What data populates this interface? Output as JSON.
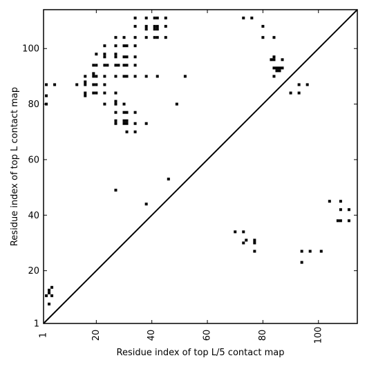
{
  "chart_data": {
    "type": "scatter",
    "title": "",
    "xlabel": "Residue index of top L/5 contact map",
    "ylabel": "Residue index of top L contact map",
    "xlim": [
      1,
      114
    ],
    "ylim": [
      1,
      114
    ],
    "x_ticks": [
      1,
      20,
      40,
      60,
      80,
      100
    ],
    "x_tick_labels": [
      "1",
      "20",
      "40",
      "60",
      "80",
      "100"
    ],
    "y_ticks": [
      1,
      20,
      40,
      60,
      80,
      100
    ],
    "y_tick_labels": [
      "1",
      "20",
      "40",
      "60",
      "80",
      "100"
    ],
    "x_tick_rotation": -90,
    "grid": false,
    "diagonal": true,
    "marker": "square",
    "color": "#000000",
    "series": [
      {
        "values": [
          [
            2,
            87
          ],
          [
            5,
            87
          ],
          [
            2,
            83
          ],
          [
            2,
            80
          ],
          [
            13,
            87
          ],
          [
            16,
            90
          ],
          [
            16,
            88
          ],
          [
            16,
            87
          ],
          [
            16,
            84
          ],
          [
            16,
            83
          ],
          [
            20,
            98
          ],
          [
            19,
            94
          ],
          [
            20,
            94
          ],
          [
            19,
            91
          ],
          [
            19,
            90
          ],
          [
            20,
            90
          ],
          [
            19,
            87
          ],
          [
            20,
            87
          ],
          [
            19,
            84
          ],
          [
            20,
            84
          ],
          [
            23,
            101
          ],
          [
            23,
            98
          ],
          [
            23,
            97
          ],
          [
            23,
            94
          ],
          [
            24,
            94
          ],
          [
            23,
            90
          ],
          [
            23,
            87
          ],
          [
            23,
            84
          ],
          [
            23,
            80
          ],
          [
            27,
            104
          ],
          [
            27,
            101
          ],
          [
            27,
            98
          ],
          [
            27,
            97
          ],
          [
            27,
            94
          ],
          [
            28,
            94
          ],
          [
            27,
            90
          ],
          [
            27,
            84
          ],
          [
            27,
            81
          ],
          [
            27,
            80
          ],
          [
            27,
            77
          ],
          [
            27,
            74
          ],
          [
            27,
            73
          ],
          [
            30,
            104
          ],
          [
            30,
            101
          ],
          [
            31,
            101
          ],
          [
            30,
            97
          ],
          [
            31,
            97
          ],
          [
            30,
            94
          ],
          [
            31,
            94
          ],
          [
            30,
            90
          ],
          [
            31,
            90
          ],
          [
            30,
            80
          ],
          [
            30,
            77
          ],
          [
            31,
            77
          ],
          [
            30,
            74
          ],
          [
            31,
            74
          ],
          [
            30,
            73
          ],
          [
            31,
            73
          ],
          [
            31,
            70
          ],
          [
            34,
            111
          ],
          [
            34,
            108
          ],
          [
            34,
            104
          ],
          [
            34,
            101
          ],
          [
            34,
            97
          ],
          [
            34,
            94
          ],
          [
            34,
            90
          ],
          [
            34,
            77
          ],
          [
            34,
            73
          ],
          [
            34,
            70
          ],
          [
            38,
            111
          ],
          [
            38,
            108
          ],
          [
            38,
            107
          ],
          [
            38,
            104
          ],
          [
            38,
            90
          ],
          [
            38,
            73
          ],
          [
            41,
            111
          ],
          [
            42,
            111
          ],
          [
            41,
            108
          ],
          [
            42,
            108
          ],
          [
            41,
            107
          ],
          [
            42,
            107
          ],
          [
            41,
            104
          ],
          [
            42,
            104
          ],
          [
            42,
            90
          ],
          [
            45,
            111
          ],
          [
            45,
            108
          ],
          [
            45,
            104
          ],
          [
            52,
            90
          ],
          [
            49,
            80
          ],
          [
            27,
            49
          ],
          [
            46,
            53
          ],
          [
            38,
            44
          ],
          [
            2,
            11
          ],
          [
            3,
            12
          ],
          [
            3,
            13
          ],
          [
            4,
            14
          ],
          [
            4,
            11
          ],
          [
            3,
            8
          ],
          [
            73,
            111
          ],
          [
            76,
            111
          ],
          [
            80,
            108
          ],
          [
            80,
            104
          ],
          [
            84,
            104
          ],
          [
            83,
            96
          ],
          [
            84,
            96
          ],
          [
            84,
            97
          ],
          [
            87,
            96
          ],
          [
            84,
            93
          ],
          [
            85,
            93
          ],
          [
            86,
            93
          ],
          [
            87,
            93
          ],
          [
            85,
            92
          ],
          [
            86,
            92
          ],
          [
            84,
            90
          ],
          [
            90,
            84
          ],
          [
            93,
            84
          ],
          [
            93,
            87
          ],
          [
            96,
            87
          ],
          [
            70,
            34
          ],
          [
            73,
            34
          ],
          [
            73,
            30
          ],
          [
            74,
            31
          ],
          [
            77,
            30
          ],
          [
            77,
            31
          ],
          [
            77,
            27
          ],
          [
            94,
            27
          ],
          [
            97,
            27
          ],
          [
            101,
            27
          ],
          [
            94,
            23
          ],
          [
            104,
            45
          ],
          [
            108,
            45
          ],
          [
            108,
            42
          ],
          [
            111,
            42
          ],
          [
            107,
            38
          ],
          [
            108,
            38
          ],
          [
            111,
            38
          ]
        ]
      }
    ]
  }
}
